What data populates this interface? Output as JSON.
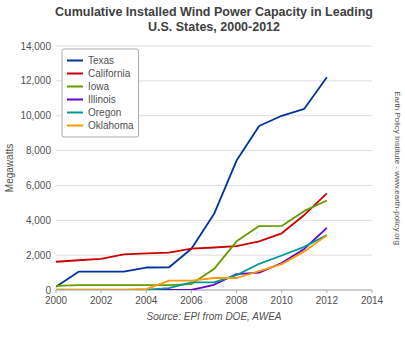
{
  "chart_data": {
    "type": "line",
    "title": "Cumulative Installed Wind Power Capacity in Leading\nU.S. States, 2000-2012",
    "x_label": "Source: EPI from DOE, AWEA",
    "y_label": "Megawatts",
    "annotations": [
      "Earth Policy Institute - www.earth-policy.org"
    ],
    "x": [
      2000,
      2001,
      2002,
      2003,
      2004,
      2005,
      2006,
      2007,
      2008,
      2009,
      2010,
      2011,
      2012
    ],
    "series": [
      {
        "name": "Texas",
        "color": "#003399",
        "values": [
          180,
          1050,
          1050,
          1050,
          1290,
          1293,
          2370,
          4356,
          7428,
          9410,
          9995,
          10394,
          12212
        ]
      },
      {
        "name": "California",
        "color": "#CC0000",
        "values": [
          1622,
          1707,
          1791,
          2043,
          2096,
          2150,
          2376,
          2439,
          2517,
          2794,
          3253,
          4305,
          5544
        ]
      },
      {
        "name": "Iowa",
        "color": "#669900",
        "values": [
          242,
          276,
          276,
          276,
          276,
          276,
          340,
          1200,
          2791,
          3670,
          3675,
          4536,
          5137
        ]
      },
      {
        "name": "Illinois",
        "color": "#6600CC",
        "values": [
          0,
          0,
          0,
          0,
          0,
          5,
          5,
          300,
          915,
          1000,
          1548,
          2359,
          3568
        ]
      },
      {
        "name": "Oregon",
        "color": "#009999",
        "values": [
          25,
          25,
          25,
          25,
          25,
          104,
          438,
          438,
          854,
          1503,
          1979,
          2472,
          3153
        ]
      },
      {
        "name": "Oklahoma",
        "color": "#FF9900",
        "values": [
          2,
          2,
          2,
          5,
          50,
          535,
          535,
          689,
          689,
          1088,
          1482,
          2215,
          3134
        ]
      }
    ],
    "xlim": [
      2000,
      2014
    ],
    "ylim": [
      0,
      14000
    ],
    "xticks": [
      2000,
      2002,
      2004,
      2006,
      2008,
      2010,
      2012,
      2014
    ],
    "yticks": [
      0,
      {
        "value": 2000,
        "label": "2,000"
      },
      {
        "value": 4000,
        "label": "4,000"
      },
      {
        "value": 6000,
        "label": "6,000"
      },
      {
        "value": 8000,
        "label": "8,000"
      },
      {
        "value": 10000,
        "label": "10,000"
      },
      {
        "value": 12000,
        "label": "12,000"
      },
      {
        "value": 14000,
        "label": "14,000"
      }
    ],
    "grid": true,
    "legend": "upper left"
  }
}
